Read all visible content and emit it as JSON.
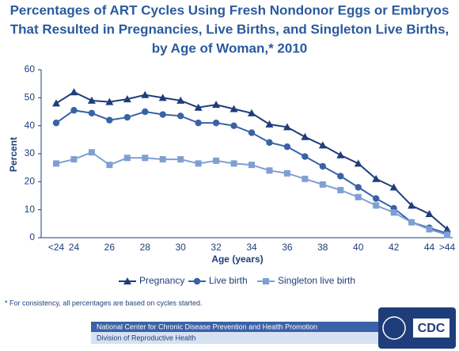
{
  "chart_data": {
    "type": "line",
    "title": [
      "Percentages of ART Cycles Using Fresh Nondonor Eggs or Embryos",
      "That Resulted in Pregnancies, Live Births, and Singleton Live Births,",
      "by Age of Woman,* 2010"
    ],
    "x_label": "Age (years)",
    "y_label": "Percent",
    "categories": [
      "<24",
      "24",
      null,
      "26",
      null,
      "28",
      null,
      "30",
      null,
      "32",
      null,
      "34",
      null,
      "36",
      null,
      "38",
      null,
      "40",
      null,
      "42",
      null,
      "44",
      ">44"
    ],
    "ylim": [
      0,
      60
    ],
    "yticks": [
      0,
      10,
      20,
      30,
      40,
      50,
      60
    ],
    "grid": false,
    "series": [
      {
        "name": "Pregnancy",
        "color": "#1f3d7a",
        "marker": "triangle",
        "values": [
          48,
          52,
          49,
          48.5,
          49.5,
          51,
          50,
          49,
          46.5,
          47.5,
          46,
          44.5,
          40.5,
          39.5,
          36,
          33,
          29.5,
          26.5,
          21,
          18,
          11.5,
          8.5,
          3
        ]
      },
      {
        "name": "Live birth",
        "color": "#3a62a7",
        "marker": "circle",
        "values": [
          41,
          45.5,
          44.5,
          42,
          43,
          45,
          44,
          43.5,
          41,
          41,
          40,
          37.5,
          34,
          32.5,
          29,
          25.5,
          22,
          18,
          14,
          10.5,
          5.5,
          3.5,
          1.5
        ]
      },
      {
        "name": "Singleton live birth",
        "color": "#7f9fd4",
        "marker": "square",
        "values": [
          26.5,
          28,
          30.5,
          26,
          28.5,
          28.5,
          28,
          28,
          26.5,
          27.5,
          26.5,
          26,
          24,
          23,
          21,
          19,
          17,
          14.5,
          11.5,
          9,
          5.5,
          3,
          1
        ]
      }
    ],
    "legend_position": "bottom",
    "footnote": "* For consistency, all percentages are based on cycles started."
  },
  "footer": {
    "center": "National Center for Chronic Disease Prevention and Health Promotion",
    "division": "Division of Reproductive Health",
    "logo": "CDC"
  }
}
